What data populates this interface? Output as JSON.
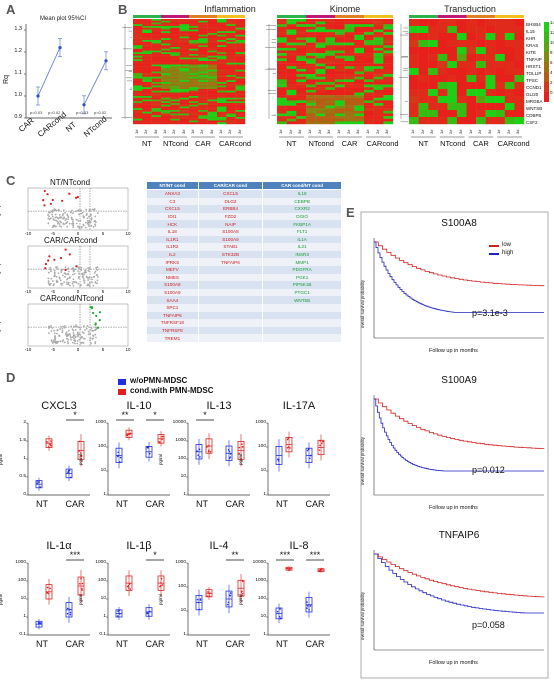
{
  "panels": {
    "a": "A",
    "b": "B",
    "c": "C",
    "d": "D",
    "e": "E"
  },
  "panel_a": {
    "title": "Mean plot 95%CI",
    "ylabel": "Rq",
    "yticks": [
      "1.3",
      "1.2",
      "1.1",
      "1.0",
      "0.9"
    ],
    "xlabels": [
      "CAR",
      "CARcond",
      "NT",
      "NTcond"
    ],
    "pvals": [
      "p=0.03",
      "p=0.02",
      "p=0.03",
      "p=0.02"
    ],
    "chart_data": {
      "type": "line",
      "series": [
        {
          "values": [
            1.0,
            1.22
          ]
        },
        {
          "values": [
            0.96,
            1.16
          ]
        }
      ],
      "ylim": [
        0.9,
        1.3
      ]
    }
  },
  "panel_b": {
    "titles": [
      "Inflammation",
      "Kinome",
      "Transduction"
    ],
    "group_labels": [
      "NT",
      "NTcond",
      "CAR",
      "CARcond"
    ],
    "col_labels": [
      "1#",
      "2#",
      "3#",
      "1#",
      "2#",
      "3#",
      "1#",
      "2#",
      "3#",
      "1#",
      "2#",
      "3#"
    ],
    "transduction_genes": [
      "BHSB4",
      "IL15",
      "KHR",
      "KRAS",
      "KITE",
      "TNFAIP",
      "HRST1",
      "TOLLIP",
      "TPSC",
      "CCND1",
      "GLI20",
      "MRGBA",
      "WNTSB",
      "CDBP8",
      "CSF2"
    ],
    "colorbar": [
      "14",
      "12",
      "10",
      "8",
      "6",
      "4",
      "2",
      "0"
    ]
  },
  "panel_c": {
    "volcano_titles": [
      "NT/NTcond",
      "CAR/CARcond",
      "CARcond/NTcond"
    ],
    "ylabel": "-log10 p-value",
    "xticks": [
      "-10",
      "-5",
      "0",
      "5",
      "10"
    ],
    "table": {
      "headers": [
        "NT/NT cond",
        "CAR/CAR cond",
        "CAR cond/NT cond"
      ],
      "rows": [
        [
          "ANXA3",
          "CXCL5",
          "IL18"
        ],
        [
          "C3",
          "DLG2",
          "CEBPB"
        ],
        [
          "CXCL5",
          "ERBB4",
          "CXXR2"
        ],
        [
          "IDI1",
          "FZD2",
          "DGIO"
        ],
        [
          "HCK",
          "NAIP",
          "FKBP1A"
        ],
        [
          "IL18",
          "S100A8",
          "FLT1"
        ],
        [
          "IL1R1",
          "S100A9",
          "IL1A"
        ],
        [
          "IL1R2",
          "STAB1",
          "IL21"
        ],
        [
          "IL2",
          "STK32B",
          "INSR3"
        ],
        [
          "IPRKS",
          "TNFAIP6",
          "MMP1"
        ],
        [
          "MEFV",
          "",
          "PDGFRA"
        ],
        [
          "NMES",
          "",
          "PGK1"
        ],
        [
          "S100A8",
          "",
          "PIP5K1B"
        ],
        [
          "S100A9",
          "",
          "PTGC1"
        ],
        [
          "SAA4",
          "",
          "WNT5B"
        ],
        [
          "SPC1",
          "",
          ""
        ],
        [
          "TNFAIP6",
          "",
          ""
        ],
        [
          "TNFRSF18",
          "",
          ""
        ],
        [
          "TNFRSF8",
          "",
          ""
        ],
        [
          "TREM1",
          "",
          ""
        ]
      ]
    }
  },
  "panel_d": {
    "legend": [
      "w/oPMN-MDSC",
      "cond.with PMN-MDSC"
    ],
    "colors": {
      "blue": "#2030e0",
      "red": "#e02020"
    },
    "ylabel": "pg/ml",
    "xlabels": [
      "NT",
      "CAR"
    ],
    "cytokines": [
      {
        "name": "CXCL3",
        "yticks": [
          "2",
          "1.5",
          "1",
          "0.5",
          "0"
        ],
        "sig": [
          "",
          "*"
        ]
      },
      {
        "name": "IL-10",
        "yticks": [
          "1000",
          "100",
          "10",
          "1"
        ],
        "sig": [
          "**",
          "*"
        ]
      },
      {
        "name": "IL-13",
        "yticks": [
          "10000",
          "1000",
          "100",
          "10",
          "1"
        ],
        "sig": [
          "*",
          ""
        ]
      },
      {
        "name": "IL-17A",
        "yticks": [
          "1000",
          "100",
          "10",
          "1"
        ],
        "sig": [
          "",
          ""
        ]
      },
      {
        "name": "IL-1α",
        "yticks": [
          "1000",
          "100",
          "10",
          "1",
          "0.1"
        ],
        "sig": [
          "",
          "***"
        ]
      },
      {
        "name": "IL-1β",
        "yticks": [
          "1000",
          "100",
          "10",
          "1",
          "0.1"
        ],
        "sig": [
          "",
          "*"
        ]
      },
      {
        "name": "IL-4",
        "yticks": [
          "1000",
          "100",
          "10",
          "1"
        ],
        "sig": [
          "",
          "**"
        ]
      },
      {
        "name": "IL-8",
        "yticks": [
          "10000",
          "1000",
          "100",
          "10",
          "1"
        ],
        "sig": [
          "***",
          "***"
        ]
      }
    ]
  },
  "panel_e": {
    "legend": [
      "low",
      "high"
    ],
    "colors": {
      "low": "#d02020",
      "high": "#2020c0"
    },
    "xlabel": "Follow up in months",
    "ylabel": "overall survival probability",
    "plots": [
      {
        "title": "S100A8",
        "pval": "p=3.1e-3"
      },
      {
        "title": "S100A9",
        "pval": "p=0.012"
      },
      {
        "title": "TNFAIP6",
        "pval": "p=0.058"
      }
    ]
  }
}
